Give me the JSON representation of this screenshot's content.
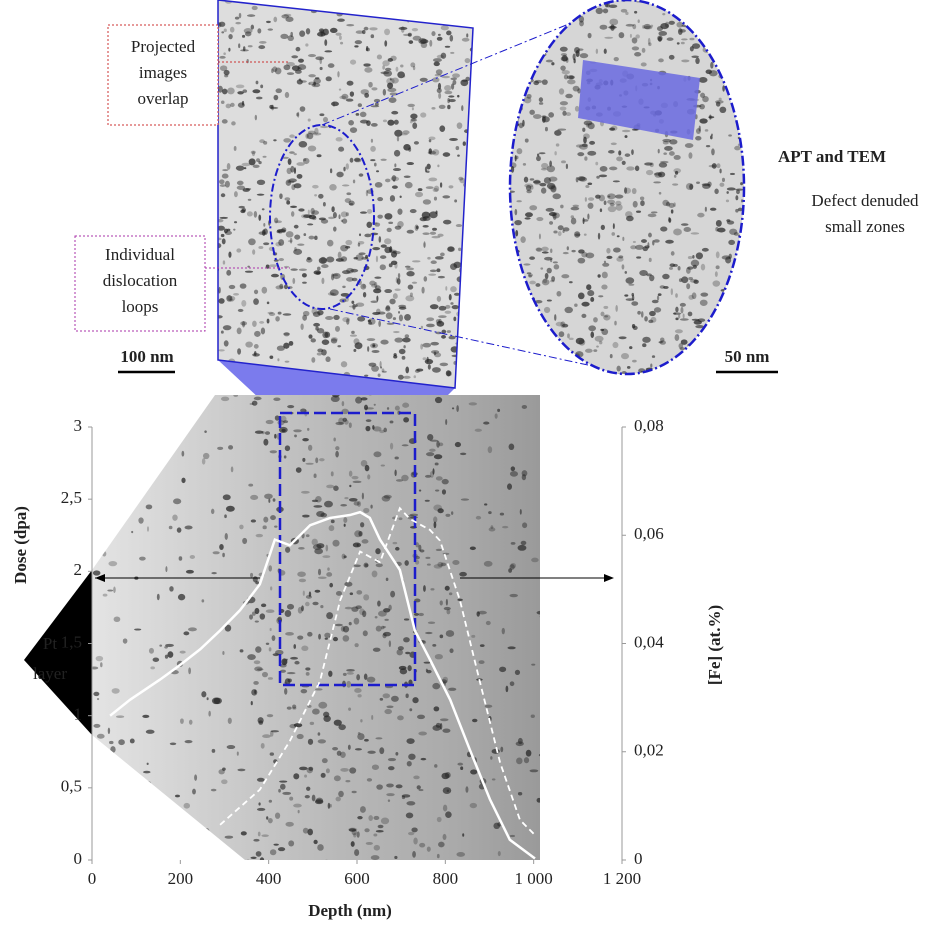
{
  "chart_data": {
    "type": "line",
    "xlabel": "Depth (nm)",
    "ylabel": "Dose (dpa)",
    "y2label": "[Fe] (at.%)",
    "xlim": [
      0,
      1200
    ],
    "xticks": [
      0,
      200,
      400,
      600,
      800,
      {
        "value": 1000,
        "label": "1 000"
      },
      {
        "value": 1200,
        "label": "1 200"
      }
    ],
    "ylim": [
      0,
      3
    ],
    "yticks": [
      0,
      {
        "value": 0.5,
        "label": "0,5"
      },
      1,
      {
        "value": 1.5,
        "label": "1,5"
      },
      2,
      {
        "value": 2.5,
        "label": "2,5"
      },
      3
    ],
    "y2lim": [
      0,
      0.08
    ],
    "y2ticks": [
      0,
      {
        "value": 0.02,
        "label": "0,02"
      },
      {
        "value": 0.04,
        "label": "0,04"
      },
      {
        "value": 0.06,
        "label": "0,06"
      },
      {
        "value": 0.08,
        "label": "0,08"
      }
    ],
    "series": [
      {
        "color": "#ffffff",
        "dashed": false,
        "x": [
          41,
          86,
          154,
          199,
          245,
          290,
          335,
          380,
          414,
          448,
          494,
          539,
          584,
          607,
          629,
          652,
          697,
          731,
          765,
          811,
          856,
          901,
          946,
          1003
        ],
        "values": [
          1.0,
          1.11,
          1.25,
          1.35,
          1.46,
          1.59,
          1.73,
          1.91,
          2.22,
          2.18,
          2.32,
          2.37,
          2.39,
          2.41,
          2.37,
          2.22,
          2.01,
          1.59,
          1.39,
          1.11,
          0.76,
          0.42,
          0.14,
          0.01
        ]
      },
      {
        "color": "#ffffff",
        "dashed": true,
        "axis": "y2",
        "x": [
          290,
          380,
          448,
          516,
          562,
          607,
          652,
          697,
          720,
          765,
          788,
          833,
          878,
          924,
          969,
          1003
        ],
        "values": [
          0.0065,
          0.013,
          0.022,
          0.033,
          0.048,
          0.057,
          0.055,
          0.065,
          0.063,
          0.061,
          0.059,
          0.048,
          0.033,
          0.018,
          0.0074,
          0.0046
        ]
      }
    ],
    "annotations": {
      "pt_layer": [
        "Pt",
        "layer"
      ],
      "projected": [
        "Projected",
        "images",
        "overlap"
      ],
      "individual": [
        "Individual",
        "dislocation",
        "loops"
      ],
      "scale_100": "100 nm",
      "scale_50": "50 nm",
      "apt_tem": "APT and TEM",
      "denuded": [
        "Defect denuded",
        "small zones"
      ]
    }
  }
}
